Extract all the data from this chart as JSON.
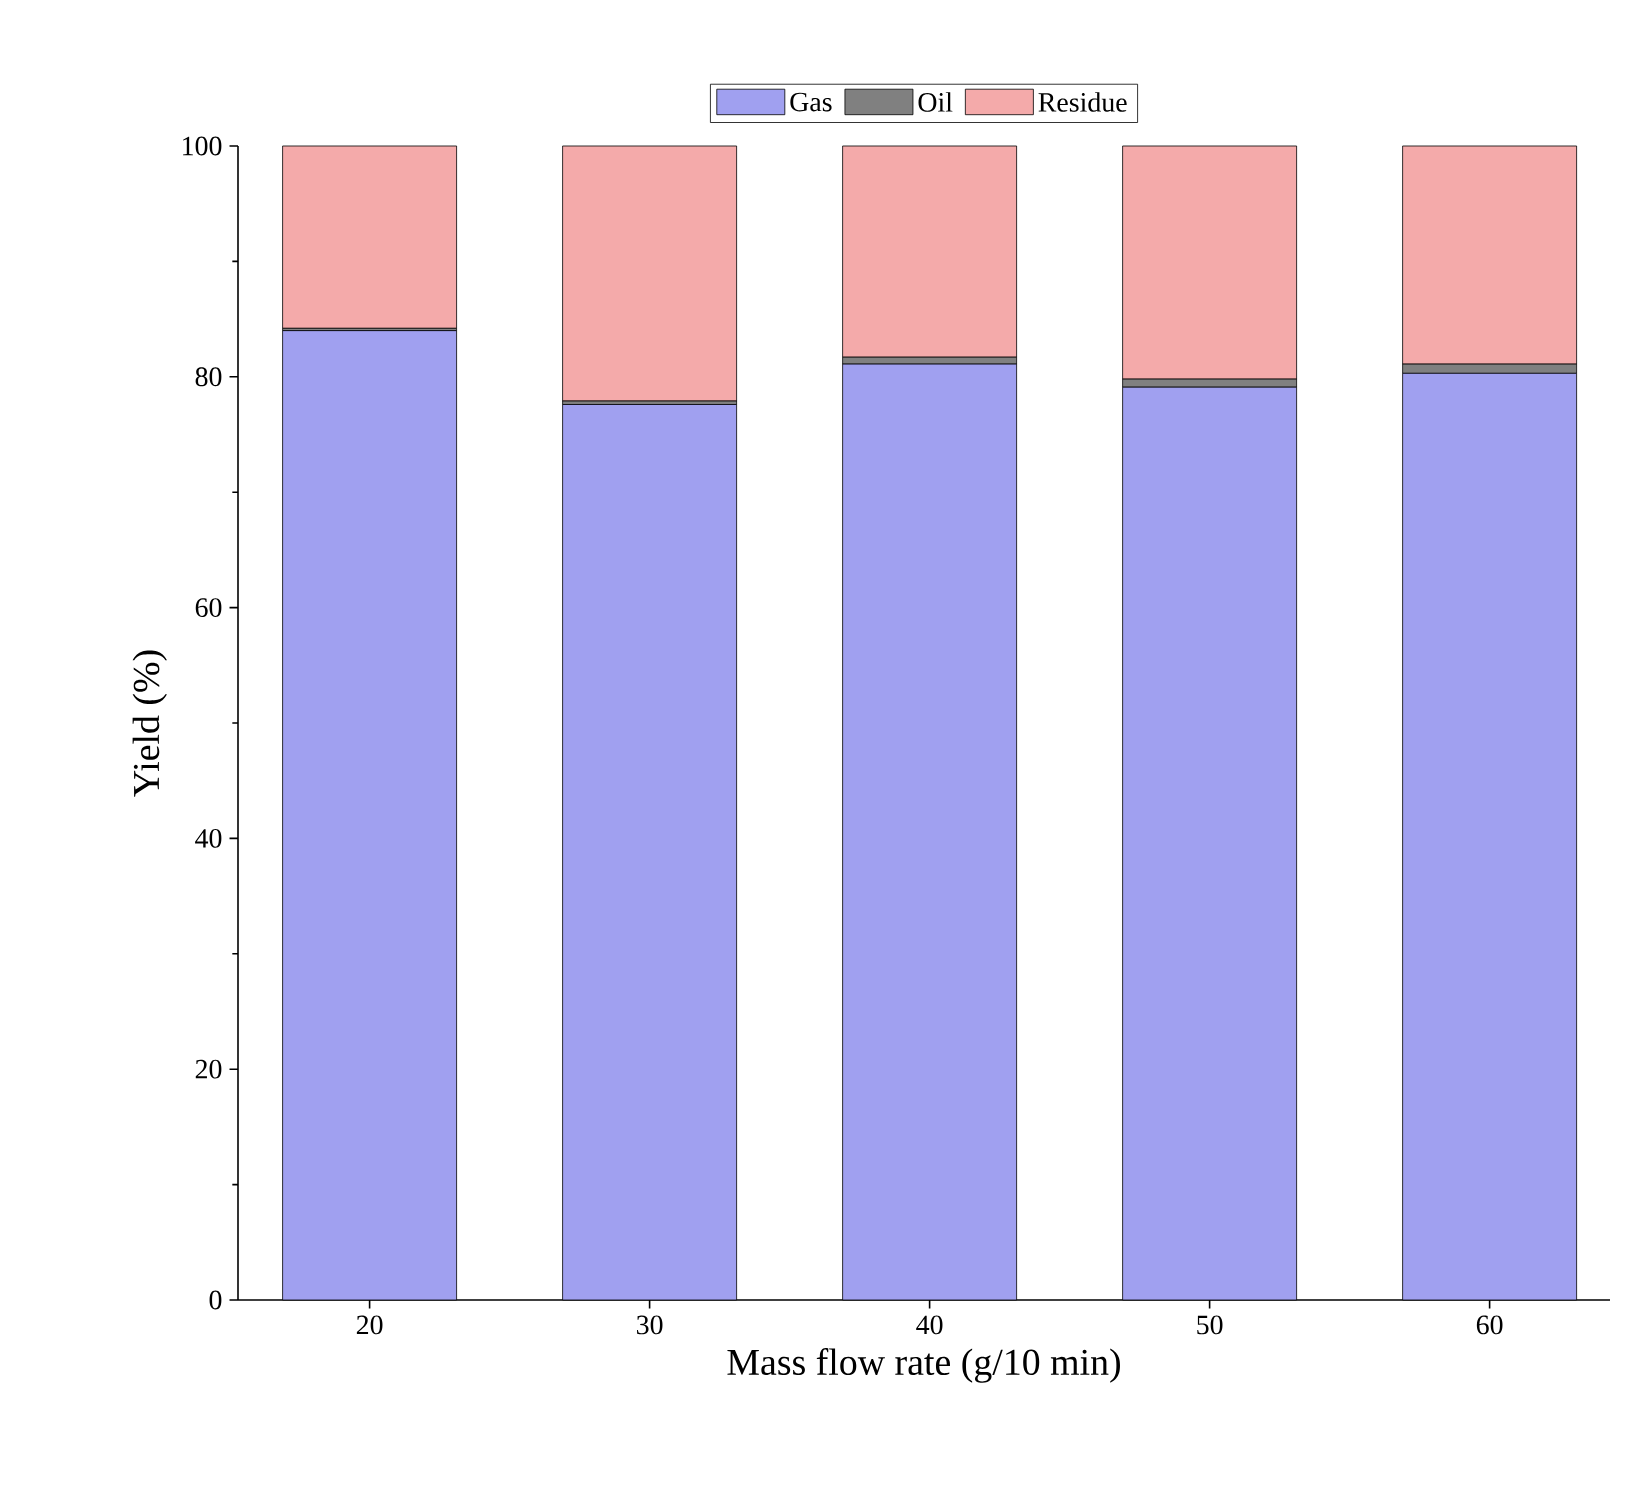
{
  "chart_data": {
    "type": "bar",
    "stacked": true,
    "xlabel": "Mass flow rate (g/10 min)",
    "ylabel": "Yield (%)",
    "categories": [
      "20",
      "30",
      "40",
      "50",
      "60"
    ],
    "series": [
      {
        "name": "Gas",
        "color": "#a0a0f0",
        "values": [
          84.0,
          77.6,
          81.1,
          79.1,
          80.3
        ]
      },
      {
        "name": "Oil",
        "color": "#808080",
        "values": [
          0.2,
          0.3,
          0.6,
          0.7,
          0.8
        ]
      },
      {
        "name": "Residue",
        "color": "#f4aaaa",
        "values": [
          15.8,
          22.1,
          18.3,
          20.2,
          18.9
        ]
      }
    ],
    "ylim": [
      0,
      100
    ],
    "yticks": [
      0,
      20,
      40,
      60,
      80,
      100
    ],
    "legend": "top",
    "grid": false
  }
}
